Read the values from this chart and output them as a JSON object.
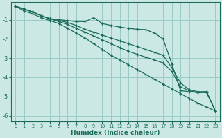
{
  "xlabel": "Humidex (Indice chaleur)",
  "ylabel": "",
  "bg_color": "#cce8e4",
  "grid_color": "#99ccc7",
  "line_color": "#1a6b5a",
  "xlim": [
    -0.5,
    23.5
  ],
  "ylim": [
    -6.3,
    -0.1
  ],
  "yticks": [
    -6,
    -5,
    -4,
    -3,
    -2,
    -1
  ],
  "xticks": [
    0,
    1,
    2,
    3,
    4,
    5,
    6,
    7,
    8,
    9,
    10,
    11,
    12,
    13,
    14,
    15,
    16,
    17,
    18,
    19,
    20,
    21,
    22,
    23
  ],
  "line1_x": [
    0,
    1,
    2,
    3,
    4,
    5,
    6,
    7,
    8,
    9,
    10,
    11,
    12,
    13,
    14,
    15,
    16,
    17,
    18,
    19,
    20,
    21,
    22,
    23
  ],
  "line1_y": [
    -0.3,
    -0.45,
    -0.6,
    -0.8,
    -0.95,
    -1.0,
    -1.05,
    -1.1,
    -1.1,
    -0.9,
    -1.2,
    -1.3,
    -1.38,
    -1.45,
    -1.5,
    -1.52,
    -1.7,
    -2.0,
    -3.3,
    -4.7,
    -4.75,
    -4.8,
    -4.75,
    -5.75
  ],
  "line2_x": [
    0,
    1,
    2,
    3,
    4,
    5,
    6,
    7,
    8,
    9,
    10,
    11,
    12,
    13,
    14,
    15,
    16,
    17,
    18,
    19,
    20,
    21,
    22,
    23
  ],
  "line2_y": [
    -0.3,
    -0.45,
    -0.6,
    -0.8,
    -0.95,
    -1.05,
    -1.15,
    -1.3,
    -1.5,
    -1.65,
    -1.8,
    -1.95,
    -2.1,
    -2.25,
    -2.4,
    -2.55,
    -2.7,
    -2.85,
    -3.5,
    -4.3,
    -4.65,
    -4.75,
    -4.75,
    -5.75
  ],
  "line3_x": [
    0,
    1,
    2,
    3,
    4,
    5,
    6,
    7,
    8,
    9,
    10,
    11,
    12,
    13,
    14,
    15,
    16,
    17,
    18,
    19,
    20,
    21,
    22,
    23
  ],
  "line3_y": [
    -0.3,
    -0.45,
    -0.6,
    -0.8,
    -0.95,
    -1.1,
    -1.25,
    -1.45,
    -1.65,
    -1.85,
    -2.05,
    -2.25,
    -2.45,
    -2.65,
    -2.8,
    -2.95,
    -3.1,
    -3.25,
    -3.7,
    -4.5,
    -4.7,
    -4.8,
    -4.8,
    -5.75
  ],
  "line4_x": [
    0,
    1,
    2,
    3,
    4,
    5,
    6,
    7,
    8,
    9,
    10,
    11,
    12,
    13,
    14,
    15,
    16,
    17,
    18,
    19,
    20,
    21,
    22,
    23
  ],
  "line4_y": [
    -0.3,
    -0.55,
    -0.7,
    -0.9,
    -1.05,
    -1.2,
    -1.45,
    -1.7,
    -1.95,
    -2.25,
    -2.55,
    -2.85,
    -3.1,
    -3.35,
    -3.6,
    -3.85,
    -4.1,
    -4.35,
    -4.6,
    -4.85,
    -5.1,
    -5.35,
    -5.55,
    -5.75
  ]
}
